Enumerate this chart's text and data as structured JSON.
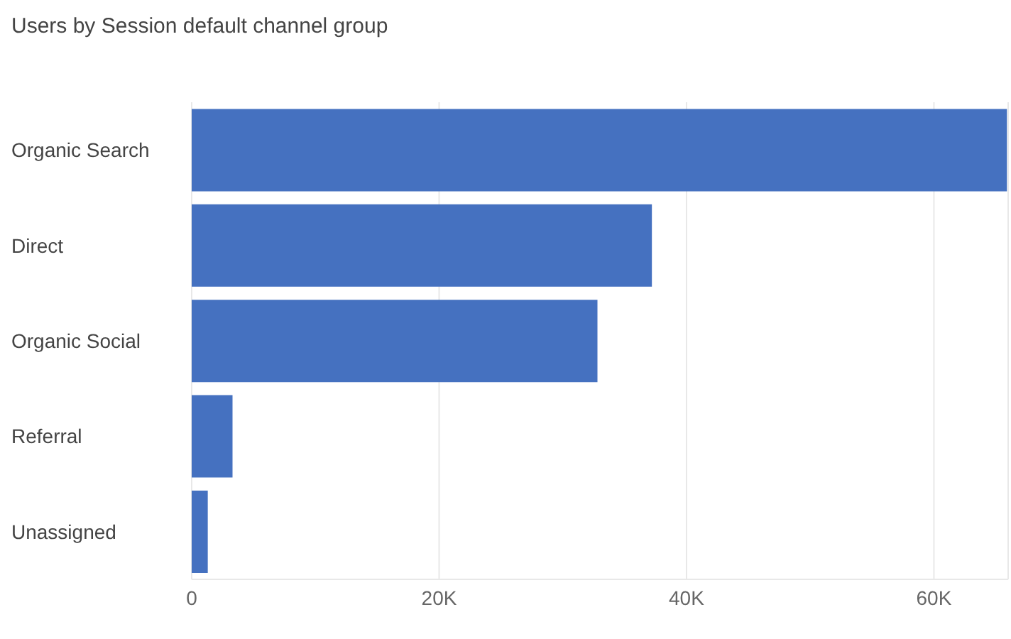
{
  "chart_data": {
    "type": "bar",
    "orientation": "horizontal",
    "title": "Users by Session default channel group",
    "categories": [
      "Organic Search",
      "Direct",
      "Organic Social",
      "Referral",
      "Unassigned"
    ],
    "values": [
      65900,
      37200,
      32800,
      3300,
      1300
    ],
    "color": "#4571c0",
    "xlim": [
      0,
      66000
    ],
    "xticks": [
      0,
      {
        "value": 20000,
        "label": "20K"
      },
      {
        "value": 40000,
        "label": "40K"
      },
      {
        "value": 60000,
        "label": "60K"
      }
    ],
    "grid": "x",
    "legend": false
  }
}
